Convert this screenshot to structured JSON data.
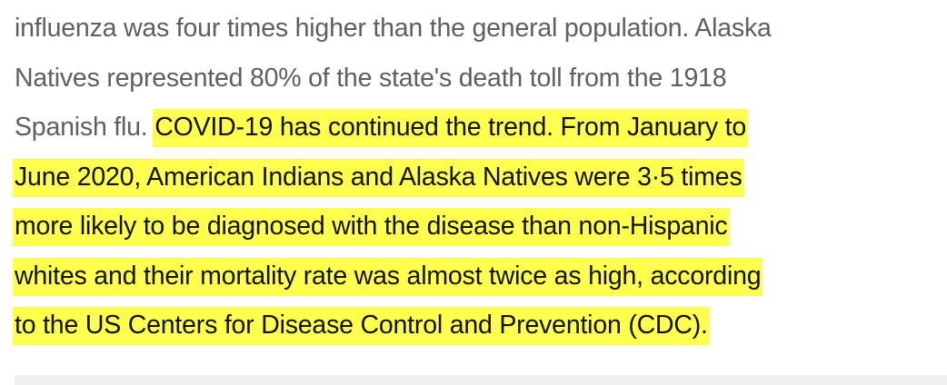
{
  "article": {
    "lines": [
      {
        "plain": "influenza was four times higher than the general population. Alaska",
        "highlight": ""
      },
      {
        "plain": "Natives represented 80% of the state's death toll from the 1918",
        "highlight": ""
      },
      {
        "plain": "Spanish flu. ",
        "highlight": "COVID-19 has continued the trend. From January to"
      },
      {
        "plain": "",
        "highlight": "June 2020, American Indians and Alaska Natives were 3·5 times"
      },
      {
        "plain": "",
        "highlight": "more likely to be diagnosed with the disease than non-Hispanic"
      },
      {
        "plain": "",
        "highlight": "whites and their mortality rate was almost twice as high, according"
      },
      {
        "plain": "",
        "highlight": "to the US Centers for Disease Control and Prevention (CDC)."
      }
    ]
  },
  "colors": {
    "highlight": "#ffff4d",
    "muted_text": "#5f5f5f",
    "highlight_text": "#111111"
  }
}
